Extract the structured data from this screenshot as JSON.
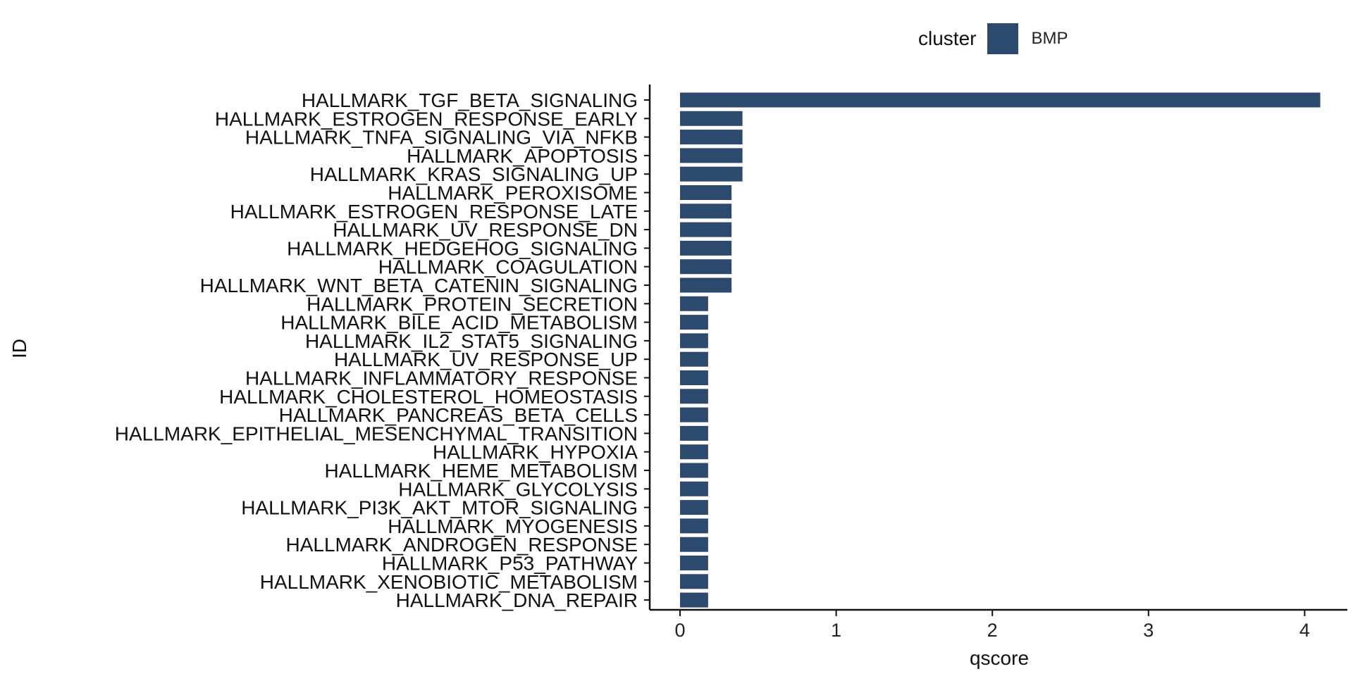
{
  "chart_data": {
    "type": "bar",
    "orientation": "horizontal",
    "xlabel": "qscore",
    "ylabel": "ID",
    "xlim": [
      -0.2,
      4.28
    ],
    "x_ticks": [
      "0",
      "1",
      "2",
      "3",
      "4"
    ],
    "grid": false,
    "legend": {
      "title": "cluster",
      "position": "top"
    },
    "series": [
      {
        "name": "BMP",
        "color": "#2c4a6e",
        "categories": [
          "HALLMARK_TGF_BETA_SIGNALING",
          "HALLMARK_ESTROGEN_RESPONSE_EARLY",
          "HALLMARK_TNFA_SIGNALING_VIA_NFKB",
          "HALLMARK_APOPTOSIS",
          "HALLMARK_KRAS_SIGNALING_UP",
          "HALLMARK_PEROXISOME",
          "HALLMARK_ESTROGEN_RESPONSE_LATE",
          "HALLMARK_UV_RESPONSE_DN",
          "HALLMARK_HEDGEHOG_SIGNALING",
          "HALLMARK_COAGULATION",
          "HALLMARK_WNT_BETA_CATENIN_SIGNALING",
          "HALLMARK_PROTEIN_SECRETION",
          "HALLMARK_BILE_ACID_METABOLISM",
          "HALLMARK_IL2_STAT5_SIGNALING",
          "HALLMARK_UV_RESPONSE_UP",
          "HALLMARK_INFLAMMATORY_RESPONSE",
          "HALLMARK_CHOLESTEROL_HOMEOSTASIS",
          "HALLMARK_PANCREAS_BETA_CELLS",
          "HALLMARK_EPITHELIAL_MESENCHYMAL_TRANSITION",
          "HALLMARK_HYPOXIA",
          "HALLMARK_HEME_METABOLISM",
          "HALLMARK_GLYCOLYSIS",
          "HALLMARK_PI3K_AKT_MTOR_SIGNALING",
          "HALLMARK_MYOGENESIS",
          "HALLMARK_ANDROGEN_RESPONSE",
          "HALLMARK_P53_PATHWAY",
          "HALLMARK_XENOBIOTIC_METABOLISM",
          "HALLMARK_DNA_REPAIR"
        ],
        "values": [
          4.1,
          0.4,
          0.4,
          0.4,
          0.4,
          0.33,
          0.33,
          0.33,
          0.33,
          0.33,
          0.33,
          0.18,
          0.18,
          0.18,
          0.18,
          0.18,
          0.18,
          0.18,
          0.18,
          0.18,
          0.18,
          0.18,
          0.18,
          0.18,
          0.18,
          0.18,
          0.18,
          0.18
        ]
      }
    ]
  }
}
